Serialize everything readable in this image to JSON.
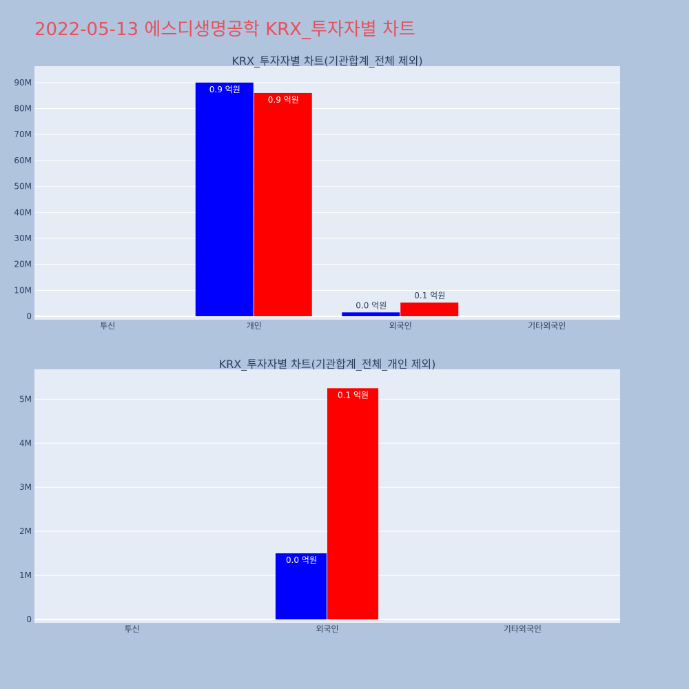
{
  "title": "2022-05-13 에스디생명공학 KRX_투자자별 차트",
  "colors": {
    "background": "#b0c4de",
    "plot_bg": "#e5ecf6",
    "title": "#e8505b",
    "series_1": "#0000ff",
    "series_2": "#ff0000"
  },
  "chart_data": [
    {
      "type": "bar",
      "title": "KRX_투자자별 차트(기관합계_전체 제외)",
      "categories": [
        "투신",
        "개인",
        "외국인",
        "기타외국인"
      ],
      "series": [
        {
          "values": [
            0,
            90000000,
            1500000,
            0
          ],
          "labels": [
            "",
            "0.9 억원",
            "0.0 억원",
            ""
          ]
        },
        {
          "values": [
            0,
            86000000,
            5250000,
            0
          ],
          "labels": [
            "",
            "0.9 억원",
            "0.1 억원",
            ""
          ]
        }
      ],
      "yticks": [
        "0",
        "10M",
        "20M",
        "30M",
        "40M",
        "50M",
        "60M",
        "70M",
        "80M",
        "90M"
      ],
      "ylim": [
        0,
        95000000
      ],
      "grid": true
    },
    {
      "type": "bar",
      "title": "KRX_투자자별 차트(기관합계_전체_개인 제외)",
      "categories": [
        "투신",
        "외국인",
        "기타외국인"
      ],
      "series": [
        {
          "values": [
            0,
            1500000,
            0
          ],
          "labels": [
            "",
            "0.0 억원",
            ""
          ]
        },
        {
          "values": [
            0,
            5250000,
            0
          ],
          "labels": [
            "",
            "0.1 억원",
            ""
          ]
        }
      ],
      "yticks": [
        "0",
        "1M",
        "2M",
        "3M",
        "4M",
        "5M"
      ],
      "ylim": [
        0,
        5600000
      ],
      "grid": true
    }
  ]
}
